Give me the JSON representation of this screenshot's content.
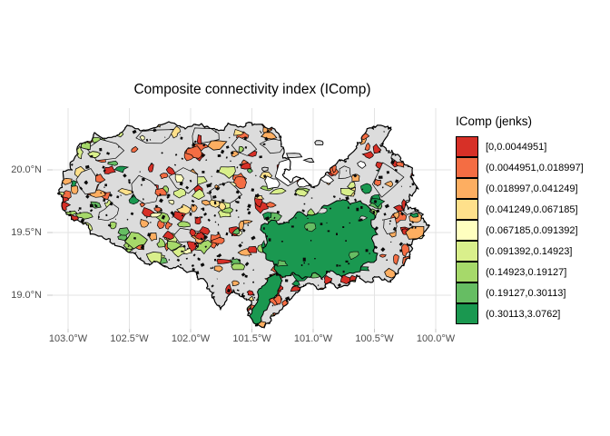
{
  "title": "Composite connectivity index (IComp)",
  "legend": {
    "title": "IComp (jenks)",
    "items": [
      {
        "label": "[0,0.0044951]",
        "color": "#d73027"
      },
      {
        "label": "(0.0044951,0.018997]",
        "color": "#f46d43"
      },
      {
        "label": "(0.018997,0.041249]",
        "color": "#fdae61"
      },
      {
        "label": "(0.041249,0.067185]",
        "color": "#fee08b"
      },
      {
        "label": "(0.067185,0.091392]",
        "color": "#ffffbf"
      },
      {
        "label": "(0.091392,0.14923]",
        "color": "#d9ef8b"
      },
      {
        "label": "(0.14923,0.19127]",
        "color": "#a6d96a"
      },
      {
        "label": "(0.19127,0.30113]",
        "color": "#66bd63"
      },
      {
        "label": "(0.30113,3.0762]",
        "color": "#1a9850"
      }
    ]
  },
  "axes": {
    "x_ticks": [
      "103.0°W",
      "102.5°W",
      "102.0°W",
      "101.5°W",
      "101.0°W",
      "100.5°W",
      "100.0°W"
    ],
    "y_ticks": [
      "20.0°N",
      "19.5°N",
      "19.0°N"
    ]
  },
  "map_colors": {
    "na_fill": "#dcdcdc",
    "outline": "#000000",
    "background": "#ffffff",
    "grid": "#e3e3e3",
    "tick": "#c8c8c8"
  },
  "chart_data": {
    "type": "choropleth_map",
    "title": "Composite connectivity index (IComp)",
    "legend_title": "IComp (jenks)",
    "classification": "jenks",
    "classes": [
      {
        "range": "[0,0.0044951]",
        "color": "#d73027"
      },
      {
        "range": "(0.0044951,0.018997]",
        "color": "#f46d43"
      },
      {
        "range": "(0.018997,0.041249]",
        "color": "#fdae61"
      },
      {
        "range": "(0.041249,0.067185]",
        "color": "#fee08b"
      },
      {
        "range": "(0.067185,0.091392]",
        "color": "#ffffbf"
      },
      {
        "range": "(0.091392,0.14923]",
        "color": "#d9ef8b"
      },
      {
        "range": "(0.14923,0.19127]",
        "color": "#a6d96a"
      },
      {
        "range": "(0.19127,0.30113]",
        "color": "#66bd63"
      },
      {
        "range": "(0.30113,3.0762]",
        "color": "#1a9850"
      }
    ],
    "x_tick_labels": [
      "103.0°W",
      "102.5°W",
      "102.0°W",
      "101.5°W",
      "101.0°W",
      "100.5°W",
      "100.0°W"
    ],
    "y_tick_labels": [
      "20.0°N",
      "19.5°N",
      "19.0°N"
    ],
    "legend_position": "right",
    "grid": "major-only"
  }
}
